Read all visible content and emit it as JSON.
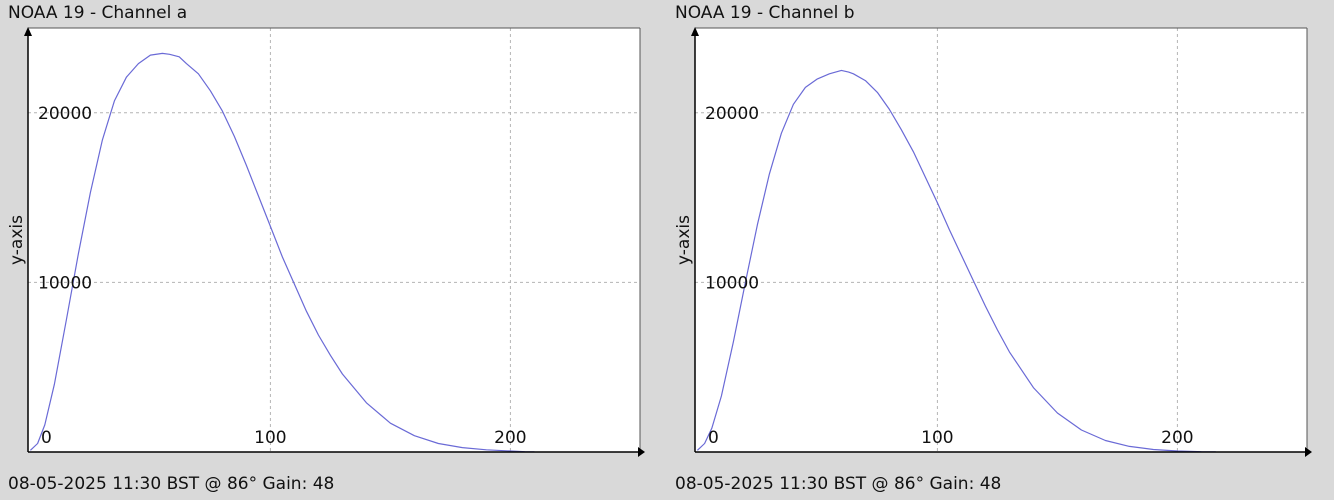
{
  "colors": {
    "background": "#d9d9d9",
    "plot_background": "#ffffff",
    "line": "#6a6ad6",
    "grid": "#b4b4b4",
    "axis": "#000000"
  },
  "chart_data": [
    {
      "type": "line",
      "title": "NOAA 19 - Channel a",
      "footer": "08-05-2025 11:30 BST @ 86° Gain: 48",
      "ylabel": "y-axis",
      "xlabel": "",
      "xlim": [
        -1,
        254
      ],
      "ylim": [
        0,
        25000
      ],
      "xticks": [
        0,
        100,
        200
      ],
      "yticks": [
        10000,
        20000
      ],
      "grid": true,
      "series": [
        {
          "x": [
            0,
            3,
            6,
            10,
            15,
            20,
            25,
            30,
            35,
            40,
            45,
            50,
            55,
            58,
            62,
            65,
            70,
            75,
            80,
            85,
            90,
            95,
            100,
            105,
            110,
            115,
            120,
            125,
            130,
            140,
            150,
            160,
            170,
            180,
            190,
            200,
            206,
            210
          ],
          "y": [
            100,
            500,
            1600,
            4000,
            7800,
            11700,
            15300,
            18400,
            20700,
            22100,
            22900,
            23400,
            23500,
            23450,
            23300,
            22900,
            22300,
            21300,
            20100,
            18600,
            16900,
            15100,
            13300,
            11500,
            9900,
            8300,
            6900,
            5700,
            4600,
            2900,
            1700,
            960,
            500,
            260,
            130,
            60,
            20,
            10
          ]
        }
      ]
    },
    {
      "type": "line",
      "title": "NOAA 19 - Channel b",
      "footer": "08-05-2025 11:30 BST @ 86° Gain: 48",
      "ylabel": "y-axis",
      "xlabel": "",
      "xlim": [
        -1,
        254
      ],
      "ylim": [
        0,
        25000
      ],
      "xticks": [
        0,
        100,
        200
      ],
      "yticks": [
        10000,
        20000
      ],
      "grid": true,
      "series": [
        {
          "x": [
            0,
            3,
            6,
            10,
            15,
            20,
            25,
            30,
            35,
            40,
            45,
            50,
            55,
            60,
            63,
            65,
            70,
            75,
            80,
            85,
            90,
            95,
            100,
            105,
            110,
            115,
            120,
            125,
            130,
            140,
            150,
            160,
            170,
            180,
            190,
            200,
            210,
            216
          ],
          "y": [
            100,
            500,
            1400,
            3300,
            6500,
            10000,
            13400,
            16400,
            18800,
            20500,
            21500,
            22000,
            22300,
            22500,
            22400,
            22300,
            21900,
            21200,
            20200,
            19000,
            17700,
            16200,
            14700,
            13100,
            11600,
            10100,
            8600,
            7200,
            5900,
            3800,
            2300,
            1300,
            680,
            330,
            150,
            60,
            20,
            10
          ]
        }
      ]
    }
  ]
}
